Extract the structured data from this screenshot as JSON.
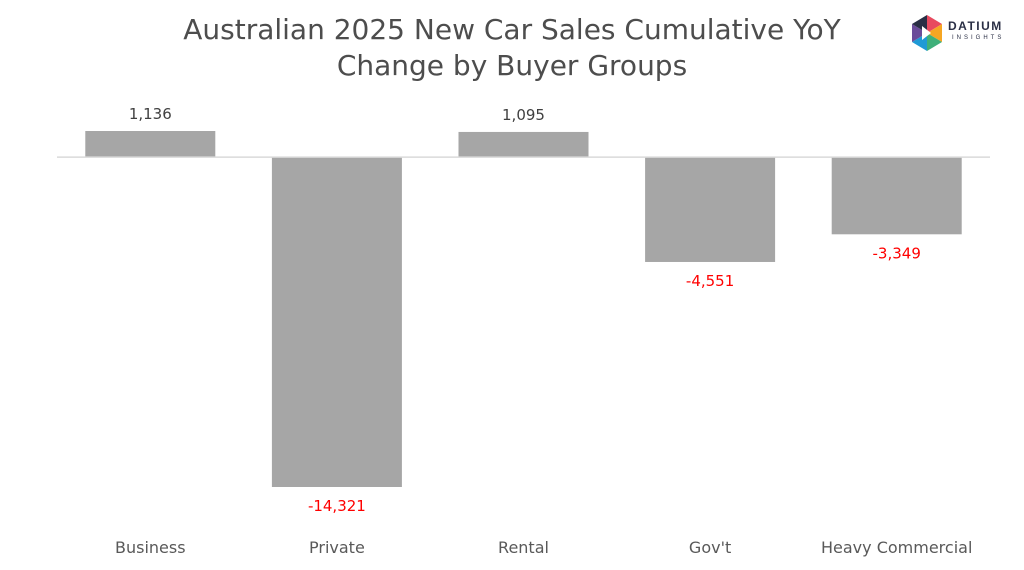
{
  "title_line1": "Australian 2025 New Car Sales Cumulative YoY",
  "title_line2": "Change by Buyer Groups",
  "logo": {
    "name": "DATIUM",
    "sub": "INSIGHTS"
  },
  "colors": {
    "bar": "#a6a6a6",
    "positive_label": "#404040",
    "negative_label": "#ff0000",
    "axis": "#d9d9d9"
  },
  "chart_data": {
    "type": "bar",
    "title": "Australian 2025 New Car Sales Cumulative YoY Change by Buyer Groups",
    "categories": [
      "Business",
      "Private",
      "Rental",
      "Gov't",
      "Heavy Commercial"
    ],
    "values": [
      1136,
      -14321,
      1095,
      -4551,
      -3349
    ],
    "data_labels": [
      "1,136",
      "-14,321",
      "1,095",
      "-4,551",
      "-3,349"
    ],
    "ylim": [
      -14321,
      1136
    ],
    "grid": false,
    "legend": "none"
  }
}
